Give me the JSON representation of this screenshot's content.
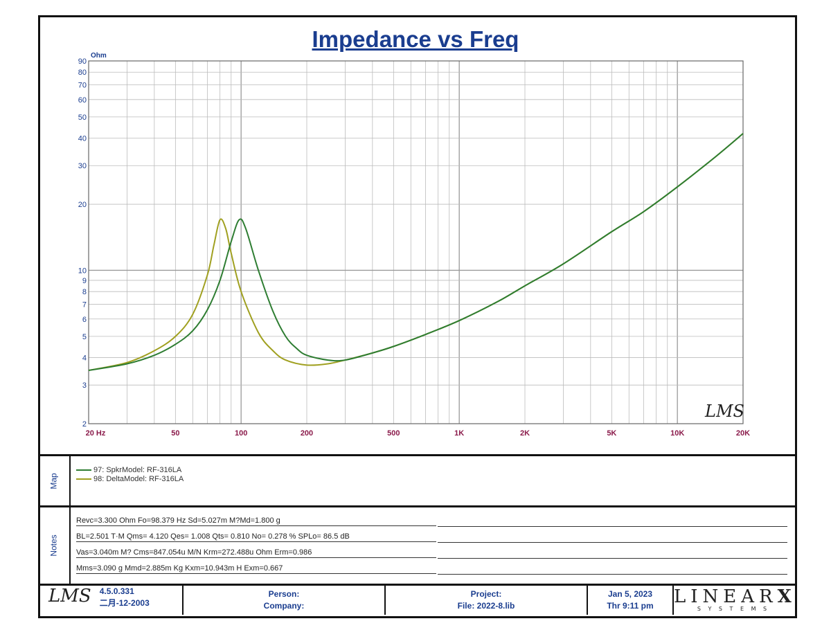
{
  "chart_data": {
    "type": "line",
    "title": "Impedance vs Freq",
    "ylabel": "Ohm",
    "xscale": "log",
    "yscale": "log",
    "xlim": [
      20,
      20000
    ],
    "ylim": [
      2,
      90
    ],
    "grid": true,
    "xticks": [
      {
        "v": 20,
        "label": "20  Hz"
      },
      {
        "v": 50,
        "label": "50"
      },
      {
        "v": 100,
        "label": "100"
      },
      {
        "v": 200,
        "label": "200"
      },
      {
        "v": 500,
        "label": "500"
      },
      {
        "v": 1000,
        "label": "1K"
      },
      {
        "v": 2000,
        "label": "2K"
      },
      {
        "v": 5000,
        "label": "5K"
      },
      {
        "v": 10000,
        "label": "10K"
      },
      {
        "v": 20000,
        "label": "20K"
      }
    ],
    "yticks": [
      2,
      3,
      4,
      5,
      6,
      7,
      8,
      9,
      10,
      20,
      30,
      40,
      50,
      60,
      70,
      80,
      90
    ],
    "series": [
      {
        "name": "97: SpkrModel: RF-316LA",
        "color": "#2e7d32",
        "x": [
          20,
          30,
          40,
          50,
          60,
          70,
          80,
          90,
          98,
          105,
          120,
          140,
          160,
          180,
          200,
          250,
          300,
          400,
          500,
          700,
          1000,
          1500,
          2000,
          3000,
          5000,
          7000,
          10000,
          15000,
          20000
        ],
        "y": [
          3.5,
          3.75,
          4.1,
          4.6,
          5.3,
          6.6,
          9,
          13.5,
          17,
          15.5,
          10,
          6.5,
          5,
          4.4,
          4.1,
          3.9,
          3.9,
          4.2,
          4.5,
          5.1,
          5.9,
          7.2,
          8.5,
          10.7,
          15,
          18.5,
          24,
          33,
          42
        ]
      },
      {
        "name": "98: DeltaModel: RF-316LA",
        "color": "#a0a020",
        "x": [
          20,
          30,
          40,
          50,
          60,
          70,
          75,
          80,
          85,
          90,
          100,
          120,
          140,
          160,
          200,
          250,
          300,
          400,
          500,
          700,
          1000,
          1500,
          2000,
          3000,
          5000,
          7000,
          10000,
          15000,
          20000
        ],
        "y": [
          3.5,
          3.8,
          4.3,
          5.0,
          6.3,
          9.5,
          13,
          17,
          15.5,
          12,
          8,
          5.2,
          4.3,
          3.9,
          3.7,
          3.75,
          3.9,
          4.2,
          4.5,
          5.1,
          5.9,
          7.2,
          8.5,
          10.7,
          15,
          18.5,
          24,
          33,
          42
        ]
      }
    ],
    "legend_position": "bottom-panel",
    "watermark": "LMS"
  },
  "sections": {
    "map": "Map",
    "notes": "Notes"
  },
  "notes": [
    "Revc=3.300 Ohm  Fo=98.379 Hz  Sd=5.027m M?Md=1.800 g",
    "BL=2.501 T·M  Qms= 4.120  Qes= 1.008  Qts= 0.810  No= 0.278 %  SPLo= 86.5 dB",
    "Vas=3.040m M? Cms=847.054u M/N  Krm=272.488u Ohm  Erm=0.986",
    "Mms=3.090 g  Mmd=2.885m Kg  Kxm=10.943m H  Exm=0.667"
  ],
  "footer": {
    "logo": "LMS",
    "version": "4.5.0.331",
    "version_date": "二月-12-2003",
    "person": "Person:",
    "company": "Company:",
    "project": "Project:",
    "file": "File: 2022-8.lib",
    "date": "Jan  5, 2023",
    "time": "Thr  9:11 pm",
    "brand": "LINEAR",
    "brand_x": "X",
    "brand_sub": "S Y S T E M S"
  }
}
